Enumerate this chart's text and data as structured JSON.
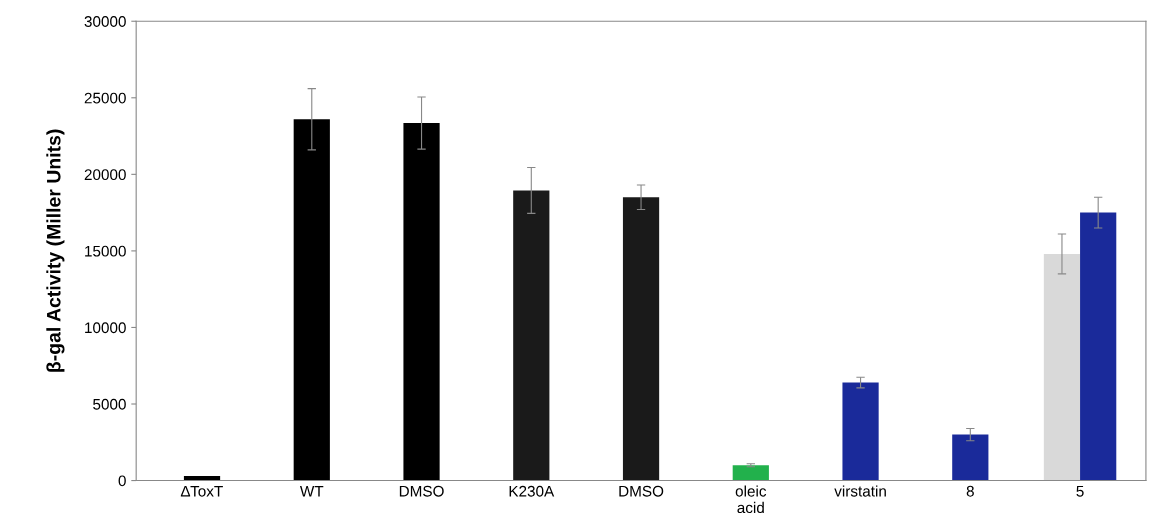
{
  "chart_data": {
    "type": "bar",
    "ylabel": "β-gal Activity (Miller Units)",
    "categories": [
      "∆ToxT",
      "WT",
      "DMSO",
      "K230A",
      "DMSO",
      "oleic\nacid",
      "virstatin",
      "8",
      "5"
    ],
    "series": [
      {
        "colors": [
          "#000000",
          "#000000",
          "#000000",
          "#1a1a1a",
          "#1a1a1a",
          "#22b14c",
          "#1a2a9a",
          "#1a2a9a",
          "#d9d9d9"
        ],
        "values": [
          300,
          23600,
          23350,
          18950,
          18500,
          1000,
          6400,
          3000,
          14800
        ],
        "errors": [
          null,
          2000,
          1700,
          1500,
          800,
          100,
          350,
          400,
          1300
        ]
      },
      {
        "color": "#1a2a9a",
        "values": [
          null,
          null,
          null,
          null,
          null,
          null,
          null,
          null,
          17500
        ],
        "errors": [
          null,
          null,
          null,
          null,
          null,
          null,
          null,
          null,
          1000
        ]
      }
    ],
    "ylim": [
      0,
      30000
    ],
    "yticks": [
      0,
      5000,
      10000,
      15000,
      20000,
      25000,
      30000
    ],
    "grid": false,
    "legend": false
  }
}
